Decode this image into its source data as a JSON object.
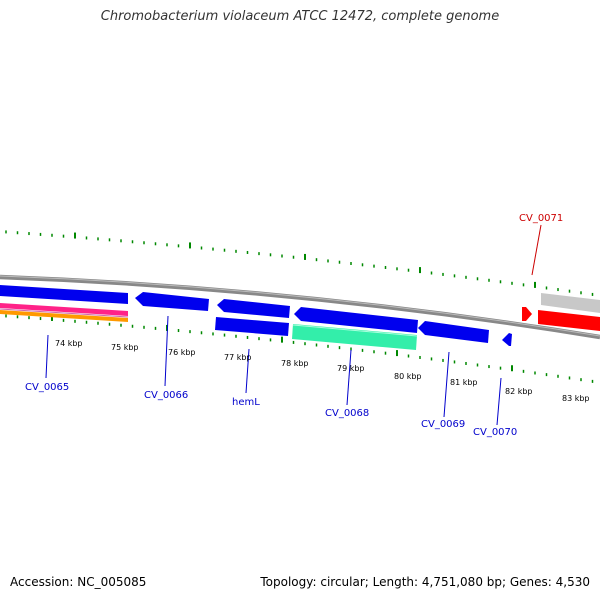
{
  "title": "Chromobacterium violaceum ATCC 12472, complete genome",
  "footer": {
    "accession": "Accession: NC_005085",
    "info": "Topology: circular; Length: 4,751,080 bp; Genes: 4,530"
  },
  "scale_labels": [
    "74 kbp",
    "75 kbp",
    "76 kbp",
    "77 kbp",
    "78 kbp",
    "79 kbp",
    "80 kbp",
    "81 kbp",
    "82 kbp",
    "83 kbp"
  ],
  "gene_labels": [
    {
      "text": "CV_0065",
      "color": "#0000cc"
    },
    {
      "text": "CV_0066",
      "color": "#0000cc"
    },
    {
      "text": "hemL",
      "color": "#0000cc"
    },
    {
      "text": "CV_0068",
      "color": "#0000cc"
    },
    {
      "text": "CV_0069",
      "color": "#0000cc"
    },
    {
      "text": "CV_0070",
      "color": "#0000cc"
    },
    {
      "text": "CV_0071",
      "color": "#cc0000"
    }
  ],
  "colors": {
    "gene_blue": "#0000ee",
    "gene_red": "#ff0000",
    "gene_gray": "#c8c8c8",
    "rna_green": "#33eeaa",
    "track_pink": "#ff2288",
    "track_orange": "#ff9900",
    "tick_green": "#008800",
    "backbone": "#888888"
  }
}
